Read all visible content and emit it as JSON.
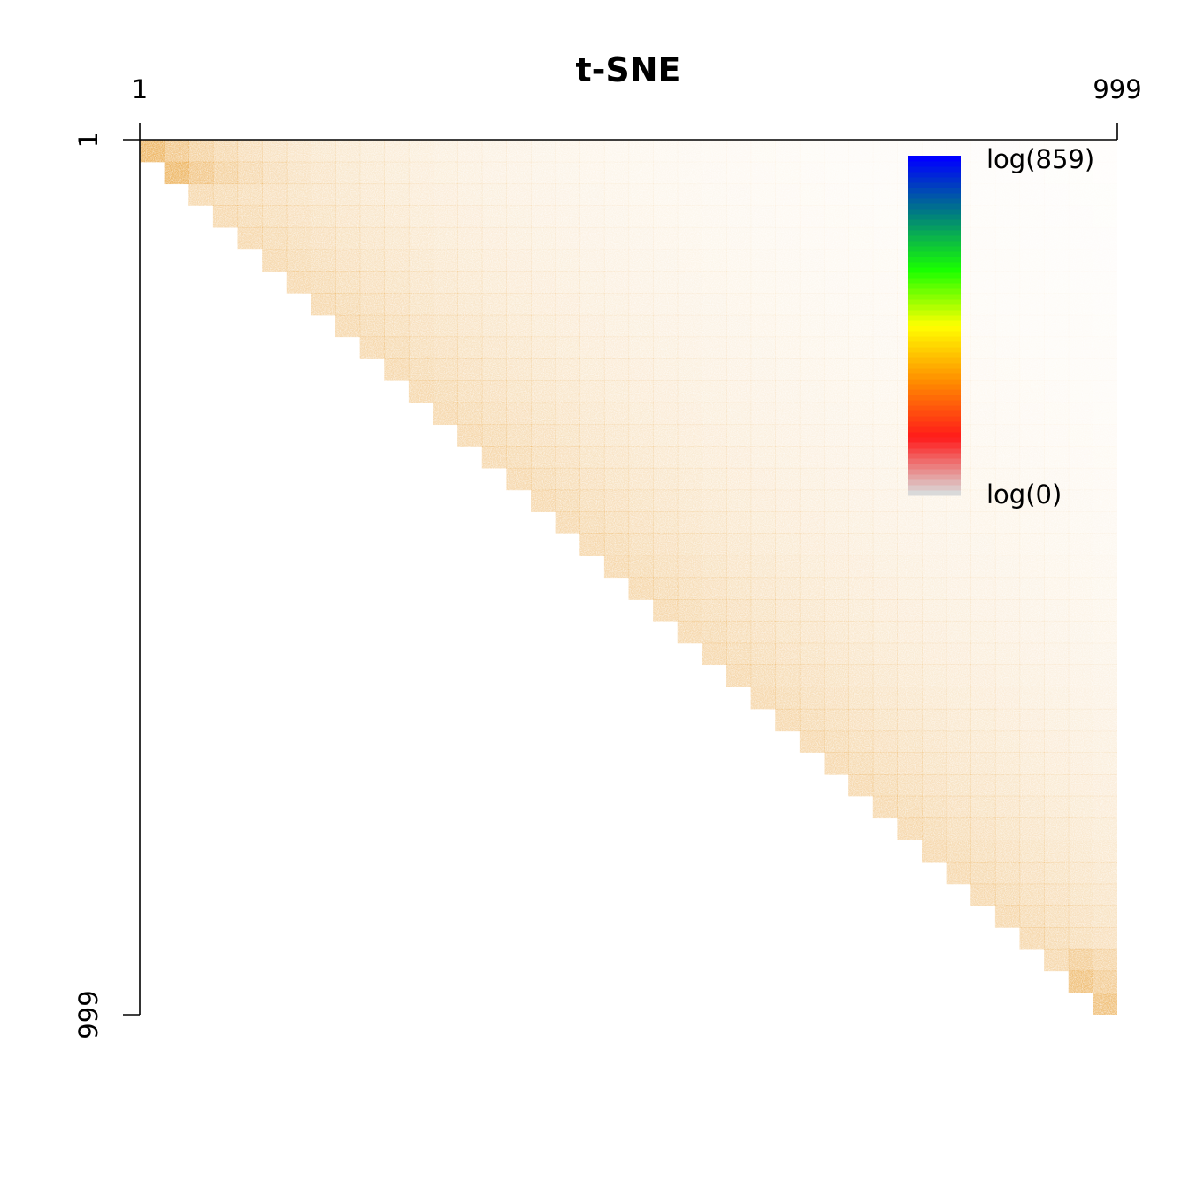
{
  "chart_data": {
    "type": "heatmap",
    "title": "t-SNE",
    "xlim": [
      1,
      999
    ],
    "ylim": [
      1,
      999
    ],
    "x_tick_labels": [
      "1",
      "999"
    ],
    "y_tick_labels": [
      "1",
      "999"
    ],
    "grid": false,
    "color_scale": {
      "max_label": "log(859)",
      "min_label": "log(0)",
      "max_value": 859,
      "min_value": 0,
      "log_scale": true,
      "colors": [
        "#d9d9d9",
        "#ff1a1a",
        "#ff8c00",
        "#ffff00",
        "#19ff00",
        "#007f7f",
        "#0000ff"
      ]
    },
    "legend_placement": "top-right",
    "structure": "upper-triangular contact matrix; values strongest along the diagonal and decaying with distance from it",
    "fill_color": "#e9a23b"
  }
}
